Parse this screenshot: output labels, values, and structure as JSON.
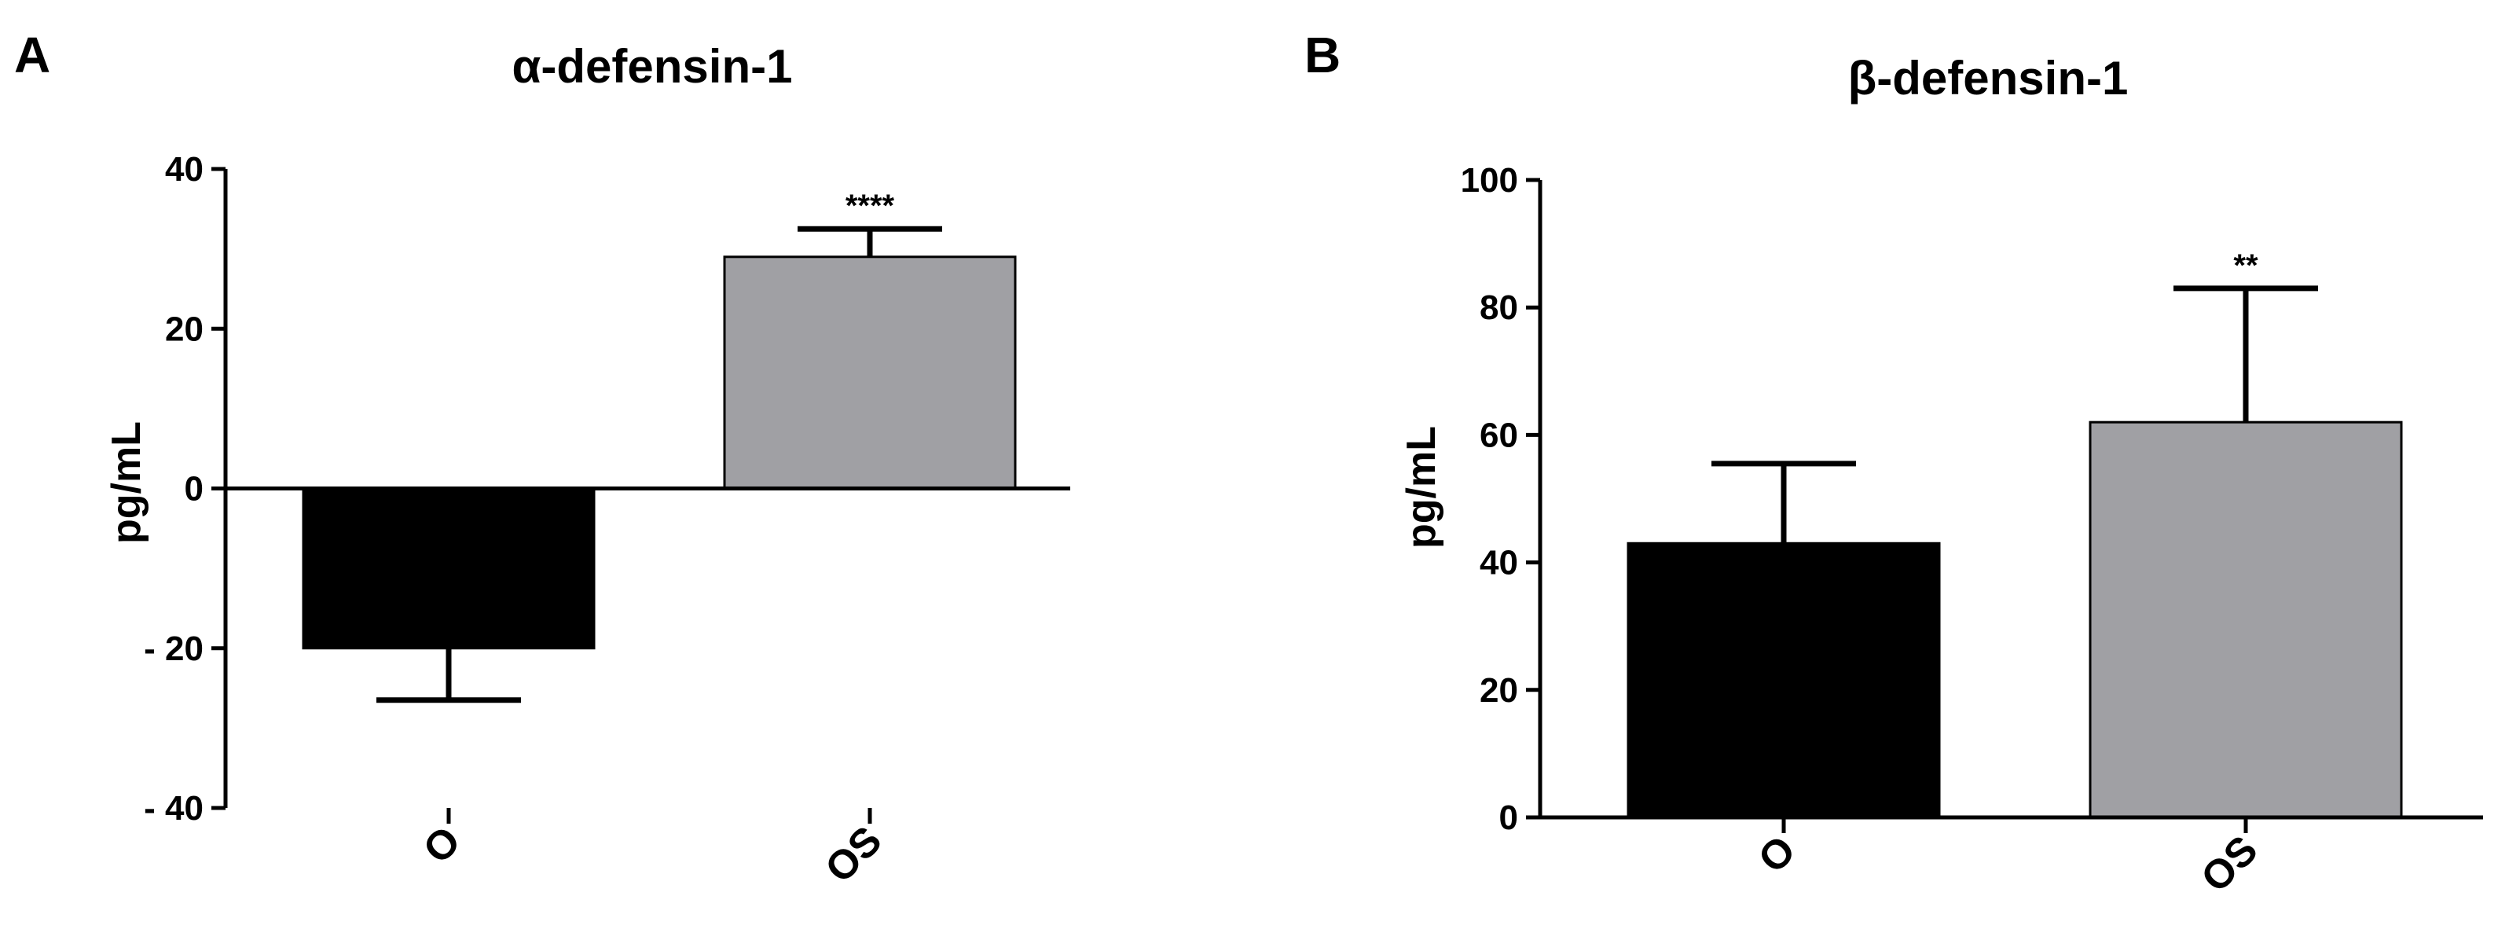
{
  "chart_data": [
    {
      "panel": "A",
      "type": "bar",
      "title": "α-defensin-1",
      "xlabel": "",
      "ylabel": "pg/mL",
      "categories": [
        "O",
        "OS"
      ],
      "values": [
        -20,
        29
      ],
      "errors": [
        6.5,
        3.5
      ],
      "significance": [
        "",
        "****"
      ],
      "colors": [
        "#000000",
        "#a0a0a4"
      ],
      "ylim": [
        -40,
        40
      ],
      "yticks": [
        40,
        20,
        0,
        -20,
        -40
      ],
      "ytick_labels": [
        "40",
        "20",
        "0",
        "- 20",
        "- 40"
      ],
      "grid": false
    },
    {
      "panel": "B",
      "type": "bar",
      "title": "β-defensin-1",
      "xlabel": "",
      "ylabel": "pg/mL",
      "categories": [
        "O",
        "OS"
      ],
      "values": [
        43,
        62
      ],
      "errors": [
        12.5,
        21
      ],
      "significance": [
        "",
        "**"
      ],
      "colors": [
        "#000000",
        "#a0a0a4"
      ],
      "ylim": [
        0,
        100
      ],
      "yticks": [
        100,
        80,
        60,
        40,
        20,
        0
      ],
      "ytick_labels": [
        "100",
        "80",
        "60",
        "40",
        "20",
        "0"
      ],
      "grid": false
    }
  ]
}
